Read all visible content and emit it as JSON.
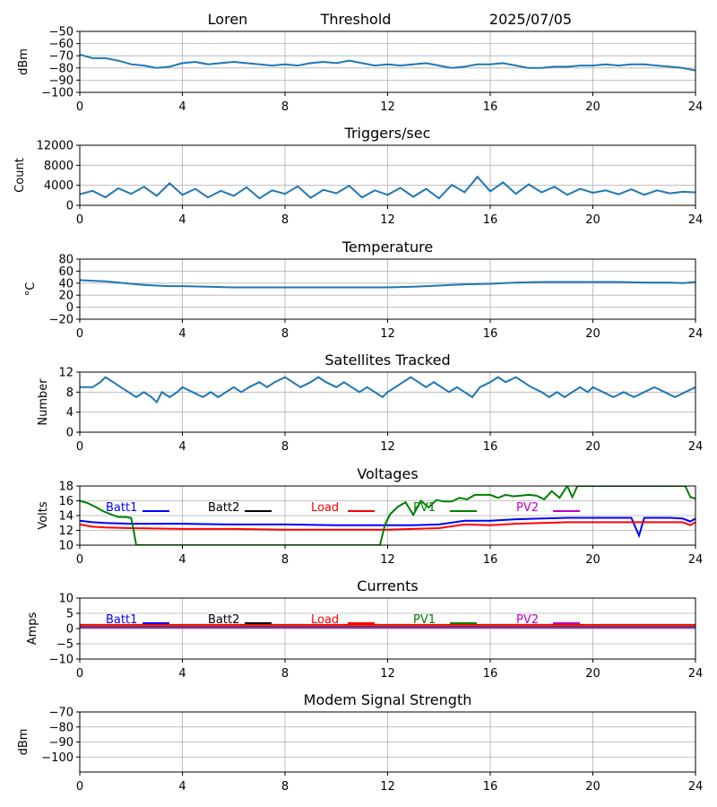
{
  "header": {
    "station": "Loren",
    "plot": "Threshold",
    "date": "2025/07/05"
  },
  "colors": {
    "series_default": "#1f77b4",
    "grid": "#b0b0b0",
    "Batt1": "#0000ff",
    "Batt2": "#000000",
    "Load": "#ff0000",
    "PV1": "#008000",
    "PV2": "#bf00bf"
  },
  "legend_labels": [
    "Batt1",
    "Batt2",
    "Load",
    "PV1",
    "PV2"
  ],
  "chart_data": [
    {
      "id": "threshold",
      "type": "line",
      "title": "",
      "xlabel": "",
      "ylabel": "dBm",
      "xlim": [
        0,
        24
      ],
      "ylim": [
        -100,
        -50
      ],
      "xticks": [
        0,
        4,
        8,
        12,
        16,
        20,
        24
      ],
      "yticks": [
        -100,
        -90,
        -80,
        -70,
        -60,
        -50
      ],
      "grid": true,
      "series": [
        {
          "x": [
            0,
            0.5,
            1,
            1.5,
            2,
            2.5,
            3,
            3.5,
            4,
            4.5,
            5,
            5.5,
            6,
            6.5,
            7,
            7.5,
            8,
            8.5,
            9,
            9.5,
            10,
            10.5,
            11,
            11.5,
            12,
            12.5,
            13,
            13.5,
            14,
            14.5,
            15,
            15.5,
            16,
            16.5,
            17,
            17.5,
            18,
            18.5,
            19,
            19.5,
            20,
            20.5,
            21,
            21.5,
            22,
            22.5,
            23,
            23.5,
            24
          ],
          "y": [
            -69,
            -72,
            -72,
            -74,
            -77,
            -78,
            -80,
            -79,
            -76,
            -75,
            -77,
            -76,
            -75,
            -76,
            -77,
            -78,
            -77,
            -78,
            -76,
            -75,
            -76,
            -74,
            -76,
            -78,
            -77,
            -78,
            -77,
            -76,
            -78,
            -80,
            -79,
            -77,
            -77,
            -76,
            -78,
            -80,
            -80,
            -79,
            -79,
            -78,
            -78,
            -77,
            -78,
            -77,
            -77,
            -78,
            -79,
            -80,
            -82
          ]
        }
      ]
    },
    {
      "id": "triggers",
      "type": "line",
      "title": "Triggers/sec",
      "xlabel": "",
      "ylabel": "Count",
      "xlim": [
        0,
        24
      ],
      "ylim": [
        0,
        12000
      ],
      "xticks": [
        0,
        4,
        8,
        12,
        16,
        20,
        24
      ],
      "yticks": [
        0,
        4000,
        8000,
        12000
      ],
      "grid": true,
      "series": [
        {
          "x": [
            0,
            0.5,
            1,
            1.5,
            2,
            2.5,
            3,
            3.5,
            4,
            4.5,
            5,
            5.5,
            6,
            6.5,
            7,
            7.5,
            8,
            8.5,
            9,
            9.5,
            10,
            10.5,
            11,
            11.5,
            12,
            12.5,
            13,
            13.5,
            14,
            14.5,
            15,
            15.5,
            16,
            16.5,
            17,
            17.5,
            18,
            18.5,
            19,
            19.5,
            20,
            20.5,
            21,
            21.5,
            22,
            22.5,
            23,
            23.5,
            24
          ],
          "y": [
            2200,
            2900,
            1600,
            3400,
            2300,
            3700,
            1900,
            4400,
            2100,
            3300,
            1600,
            2900,
            1900,
            3600,
            1400,
            3000,
            2300,
            3800,
            1500,
            3100,
            2400,
            3900,
            1600,
            3000,
            2100,
            3500,
            1700,
            3300,
            1400,
            4100,
            2600,
            5700,
            2800,
            4600,
            2300,
            4200,
            2600,
            3700,
            2100,
            3300,
            2500,
            3000,
            2200,
            3200,
            2100,
            3000,
            2400,
            2700,
            2600
          ]
        }
      ]
    },
    {
      "id": "temperature",
      "type": "line",
      "title": "Temperature",
      "xlabel": "",
      "ylabel": "°C",
      "xlim": [
        0,
        24
      ],
      "ylim": [
        -20,
        80
      ],
      "xticks": [
        0,
        4,
        8,
        12,
        16,
        20,
        24
      ],
      "yticks": [
        -20,
        0,
        20,
        40,
        60,
        80
      ],
      "grid": true,
      "series": [
        {
          "x": [
            0,
            0.5,
            1,
            1.5,
            2,
            2.5,
            3,
            3.5,
            4,
            5,
            6,
            7,
            8,
            9,
            10,
            11,
            12,
            13,
            14,
            15,
            16,
            17,
            18,
            19,
            20,
            21,
            22,
            23,
            23.5,
            24
          ],
          "y": [
            45,
            44,
            43,
            41,
            39,
            37,
            36,
            35,
            35,
            34,
            33,
            33,
            33,
            33,
            33,
            33,
            33,
            34,
            36,
            38,
            39,
            41,
            42,
            42,
            42,
            42,
            41,
            41,
            40,
            42
          ]
        }
      ]
    },
    {
      "id": "satellites",
      "type": "line",
      "title": "Satellites Tracked",
      "xlabel": "",
      "ylabel": "Number",
      "xlim": [
        0,
        24
      ],
      "ylim": [
        0,
        12
      ],
      "xticks": [
        0,
        4,
        8,
        12,
        16,
        20,
        24
      ],
      "yticks": [
        0,
        4,
        8,
        12
      ],
      "grid": true,
      "series": [
        {
          "x": [
            0,
            0.5,
            0.8,
            1,
            1.3,
            1.6,
            1.9,
            2.2,
            2.5,
            2.8,
            3,
            3.2,
            3.5,
            3.8,
            4,
            4.4,
            4.8,
            5.1,
            5.4,
            5.7,
            6,
            6.3,
            6.6,
            7,
            7.3,
            7.6,
            8,
            8.3,
            8.6,
            9,
            9.3,
            9.6,
            10,
            10.3,
            10.6,
            10.9,
            11.2,
            11.5,
            11.8,
            12,
            12.3,
            12.6,
            12.9,
            13.2,
            13.5,
            13.8,
            14.1,
            14.4,
            14.7,
            15,
            15.3,
            15.6,
            16,
            16.3,
            16.6,
            17,
            17.3,
            17.6,
            18,
            18.3,
            18.6,
            18.9,
            19.2,
            19.5,
            19.8,
            20,
            20.4,
            20.8,
            21.2,
            21.6,
            22,
            22.4,
            22.8,
            23.2,
            23.6,
            24
          ],
          "y": [
            9,
            9,
            10,
            11,
            10,
            9,
            8,
            7,
            8,
            7,
            6,
            8,
            7,
            8,
            9,
            8,
            7,
            8,
            7,
            8,
            9,
            8,
            9,
            10,
            9,
            10,
            11,
            10,
            9,
            10,
            11,
            10,
            9,
            10,
            9,
            8,
            9,
            8,
            7,
            8,
            9,
            10,
            11,
            10,
            9,
            10,
            9,
            8,
            9,
            8,
            7,
            9,
            10,
            11,
            10,
            11,
            10,
            9,
            8,
            7,
            8,
            7,
            8,
            9,
            8,
            9,
            8,
            7,
            8,
            7,
            8,
            9,
            8,
            7,
            8,
            9
          ]
        }
      ]
    },
    {
      "id": "voltages",
      "type": "line",
      "title": "Voltages",
      "xlabel": "",
      "ylabel": "Volts",
      "xlim": [
        0,
        24
      ],
      "ylim": [
        10,
        18
      ],
      "xticks": [
        0,
        4,
        8,
        12,
        16,
        20,
        24
      ],
      "yticks": [
        10,
        12,
        14,
        16,
        18
      ],
      "grid": true,
      "legend": "top",
      "series": [
        {
          "name": "Batt1",
          "x": [
            0,
            0.5,
            1,
            2,
            4,
            6,
            8,
            10,
            12,
            13,
            14,
            15,
            16,
            17,
            18,
            19,
            20,
            21,
            21.5,
            21.8,
            22,
            23,
            23.5,
            23.8,
            24
          ],
          "y": [
            13.3,
            13.1,
            13.0,
            12.9,
            12.9,
            12.8,
            12.8,
            12.7,
            12.7,
            12.7,
            12.8,
            13.3,
            13.3,
            13.5,
            13.6,
            13.7,
            13.7,
            13.7,
            13.7,
            11.3,
            13.7,
            13.7,
            13.6,
            13.2,
            13.6
          ]
        },
        {
          "name": "Load",
          "x": [
            0,
            0.5,
            1,
            2,
            4,
            6,
            8,
            10,
            12,
            13,
            14,
            15,
            16,
            17,
            18,
            19,
            20,
            21,
            22,
            23,
            23.5,
            23.8,
            24
          ],
          "y": [
            12.8,
            12.5,
            12.4,
            12.3,
            12.2,
            12.2,
            12.1,
            12.1,
            12.1,
            12.2,
            12.3,
            12.8,
            12.7,
            12.9,
            13.0,
            13.1,
            13.1,
            13.1,
            13.1,
            13.1,
            13.1,
            12.7,
            13.1
          ]
        },
        {
          "name": "PV1",
          "x": [
            0,
            0.3,
            0.6,
            0.9,
            1.2,
            1.5,
            1.8,
            2.0,
            2.1,
            2.2,
            11.7,
            11.9,
            12.1,
            12.4,
            12.7,
            13.0,
            13.3,
            13.6,
            13.9,
            14.2,
            14.5,
            14.8,
            15.1,
            15.4,
            15.7,
            16.0,
            16.3,
            16.6,
            16.9,
            17.2,
            17.5,
            17.8,
            18.1,
            18.4,
            18.7,
            19.0,
            19.2,
            19.4,
            23.6,
            23.8,
            24
          ],
          "y": [
            16.0,
            15.7,
            15.2,
            14.6,
            14.2,
            13.8,
            13.8,
            13.7,
            12.0,
            10.0,
            10.0,
            12.8,
            14.2,
            15.2,
            15.8,
            14.1,
            16.0,
            15.1,
            16.1,
            15.9,
            15.9,
            16.4,
            16.2,
            16.8,
            16.8,
            16.8,
            16.4,
            16.8,
            16.6,
            16.7,
            16.8,
            16.7,
            16.2,
            17.3,
            16.4,
            18.0,
            16.5,
            18.0,
            18.0,
            16.5,
            16.3
          ]
        }
      ]
    },
    {
      "id": "currents",
      "type": "line",
      "title": "Currents",
      "xlabel": "",
      "ylabel": "Amps",
      "xlim": [
        0,
        24
      ],
      "ylim": [
        -10,
        10
      ],
      "xticks": [
        0,
        4,
        8,
        12,
        16,
        20,
        24
      ],
      "yticks": [
        -10,
        -5,
        0,
        5,
        10
      ],
      "grid": true,
      "legend": "top",
      "series": [
        {
          "name": "Load",
          "x": [
            0,
            4,
            8,
            12,
            16,
            20,
            24
          ],
          "y": [
            1.2,
            1.2,
            1.2,
            1.2,
            1.2,
            1.2,
            1.2
          ]
        },
        {
          "name": "Batt1",
          "x": [
            0,
            4,
            8,
            12,
            16,
            20,
            24
          ],
          "y": [
            0.4,
            0.4,
            0.4,
            0.4,
            0.4,
            0.4,
            0.4
          ]
        },
        {
          "name": "PV1",
          "x": [
            0,
            4,
            8,
            12,
            16,
            20,
            24
          ],
          "y": [
            0.6,
            0.6,
            0.6,
            0.6,
            0.6,
            0.6,
            0.6
          ]
        },
        {
          "name": "PV2",
          "x": [
            0,
            4,
            8,
            12,
            16,
            20,
            24
          ],
          "y": [
            0.3,
            0.3,
            0.3,
            0.3,
            0.3,
            0.3,
            0.3
          ]
        }
      ]
    },
    {
      "id": "modem",
      "type": "line",
      "title": "Modem Signal Strength",
      "xlabel": "",
      "ylabel": "dBm",
      "xlim": [
        0,
        24
      ],
      "ylim": [
        -110,
        -70
      ],
      "xticks": [
        0,
        4,
        8,
        12,
        16,
        20,
        24
      ],
      "yticks": [
        -100,
        -90,
        -80,
        -70
      ],
      "grid": true,
      "series": []
    }
  ]
}
